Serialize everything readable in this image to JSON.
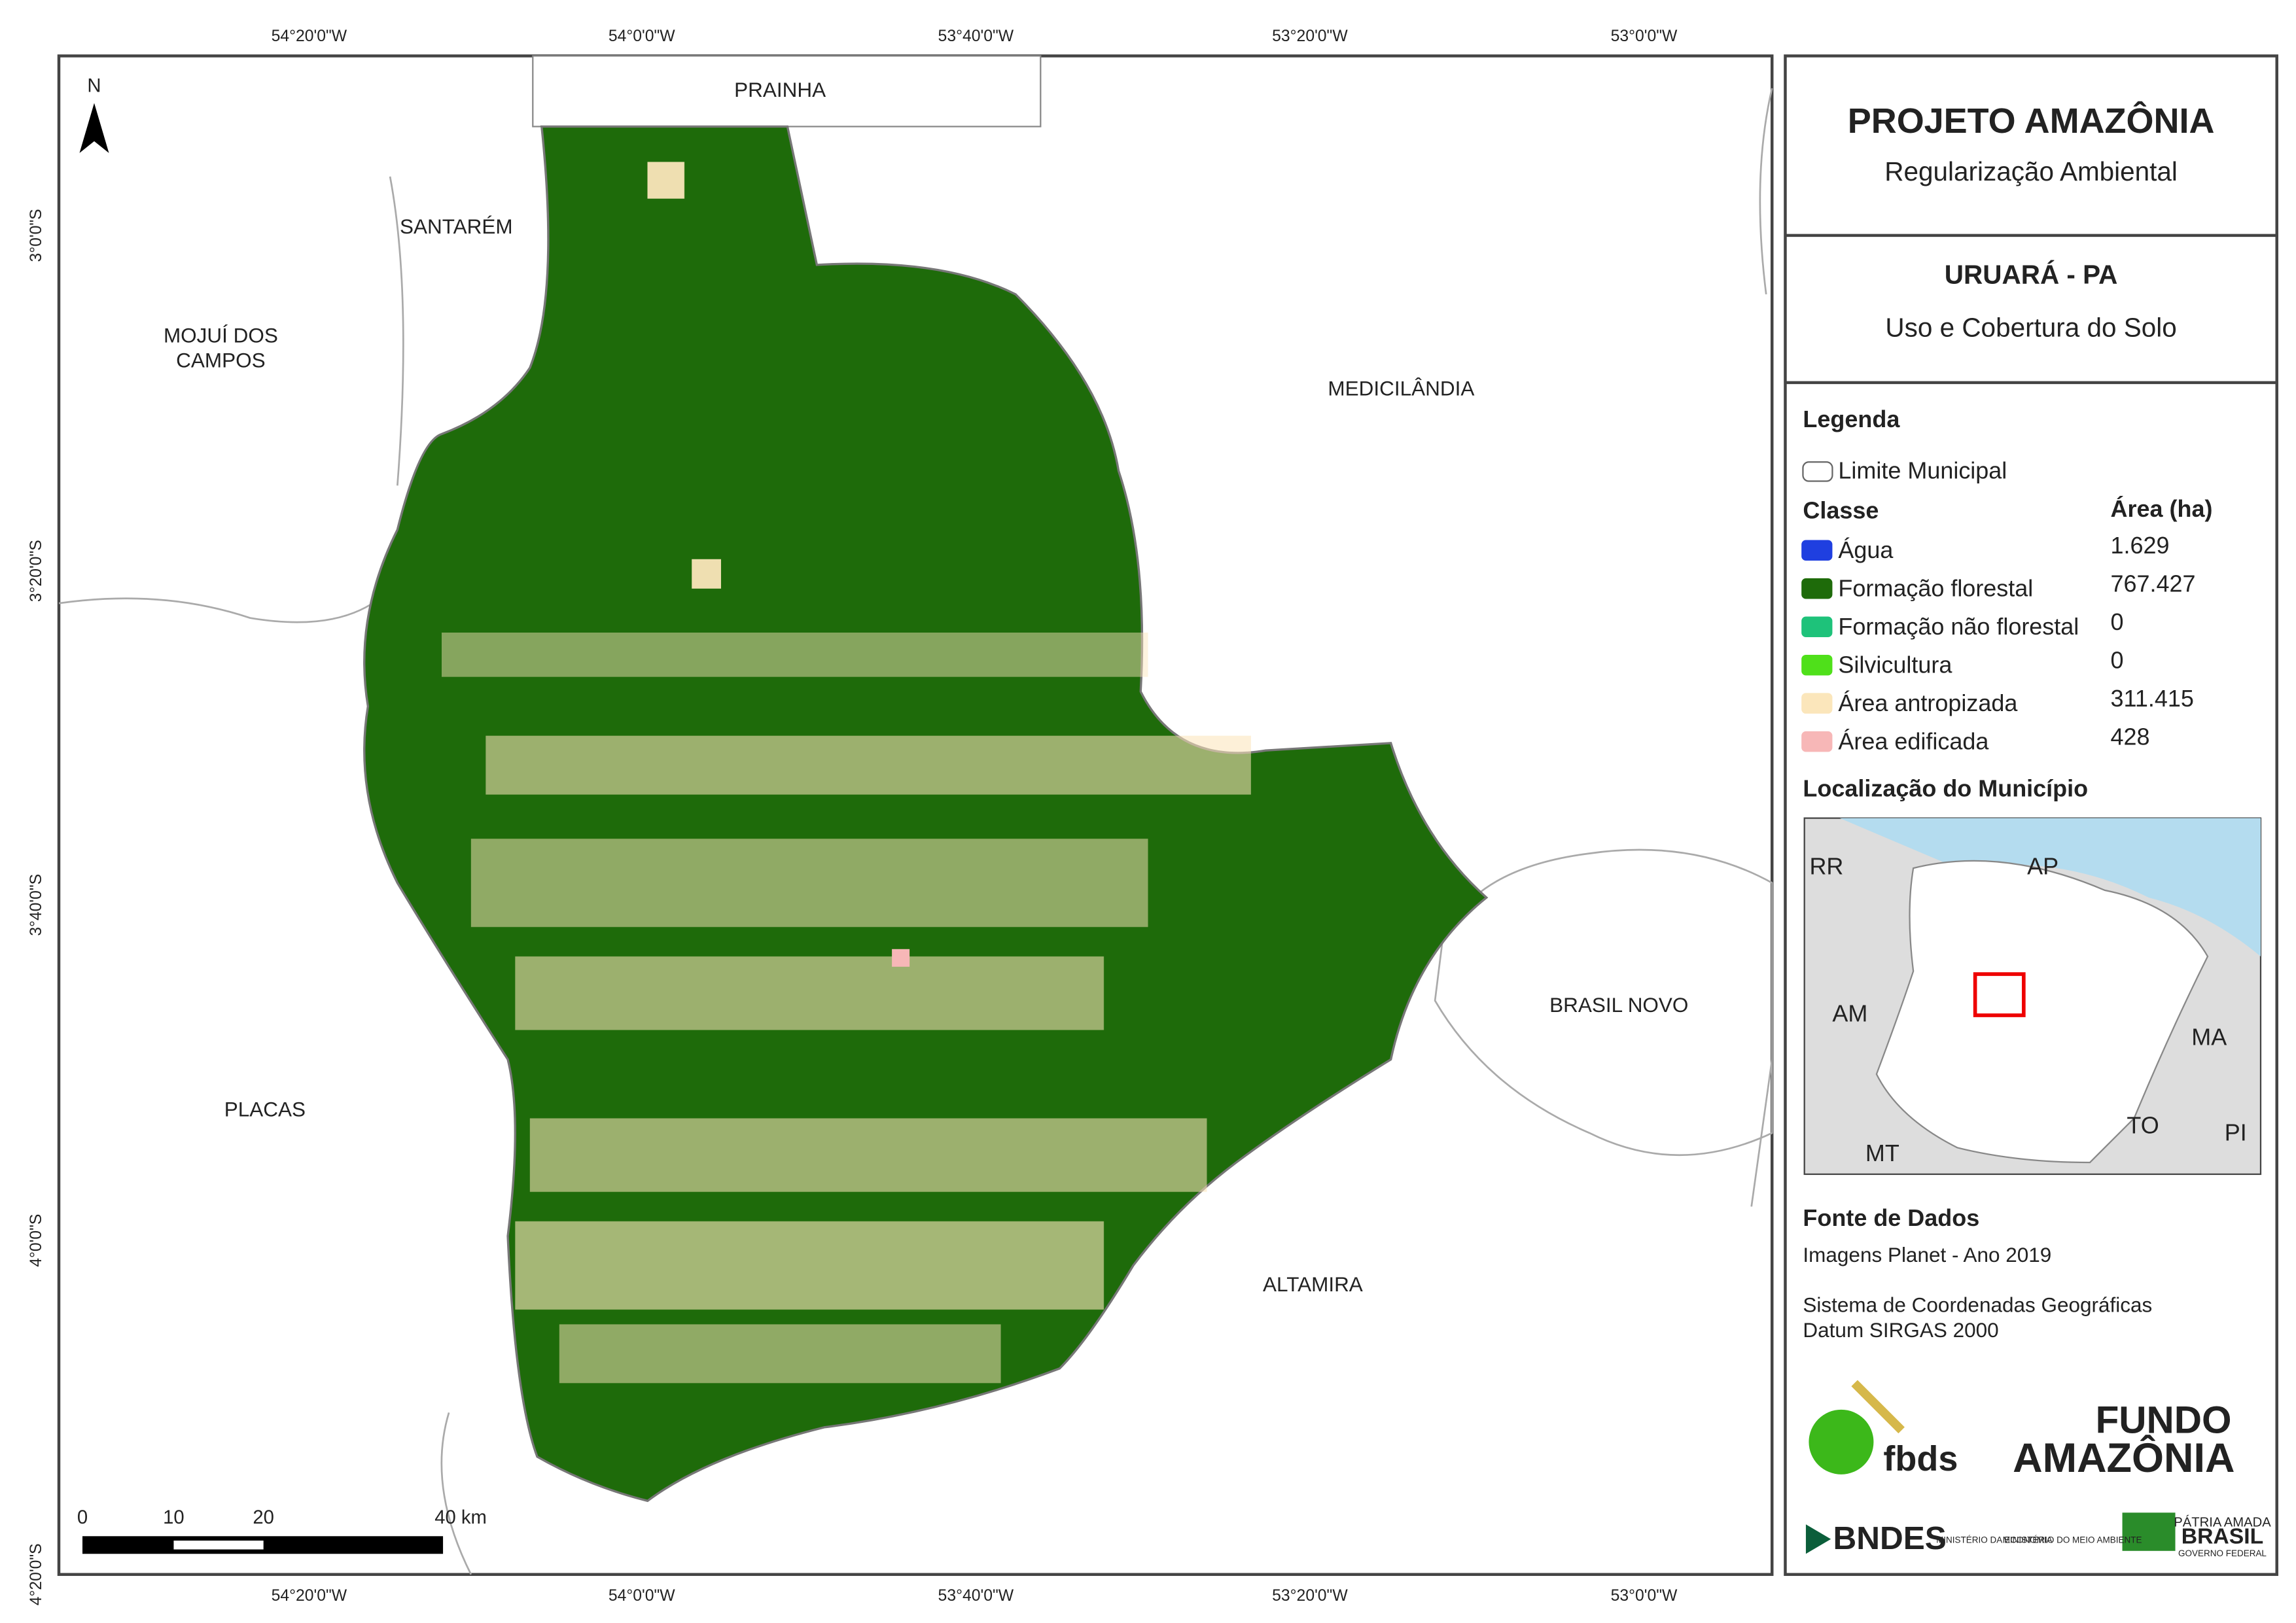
{
  "header": {
    "title": "PROJETO AMAZÔNIA",
    "subtitle": "Regularização Ambiental"
  },
  "municipality": {
    "name": "URUARÁ - PA",
    "theme": "Uso e Cobertura do Solo"
  },
  "legend": {
    "title": "Legenda",
    "boundary": "Limite Municipal",
    "class_header": "Classe",
    "area_header": "Área (ha)",
    "classes": [
      {
        "name": "Água",
        "area": "1.629",
        "color": "#1f3fe0"
      },
      {
        "name": "Formação florestal",
        "area": "767.427",
        "color": "#1e6b0a"
      },
      {
        "name": "Formação não florestal",
        "area": "0",
        "color": "#1ec27a"
      },
      {
        "name": "Silvicultura",
        "area": "0",
        "color": "#4fe01a"
      },
      {
        "name": "Área antropizada",
        "area": "311.415",
        "color": "#fbe6bb"
      },
      {
        "name": "Área edificada",
        "area": "428",
        "color": "#f7b7b7"
      }
    ]
  },
  "location": {
    "title": "Localização do Município",
    "states": [
      "RR",
      "AP",
      "AM",
      "MA",
      "TO",
      "MT",
      "PI"
    ]
  },
  "sources": {
    "title": "Fonte de Dados",
    "lines": [
      "Imagens Planet - Ano 2019",
      "Sistema de Coordenadas Geográficas",
      "Datum SIRGAS 2000"
    ]
  },
  "map": {
    "north": "N",
    "neighbors": [
      [
        "PRAINHA"
      ],
      [
        "SANTARÉM"
      ],
      [
        "MOJUÍ DOS",
        "CAMPOS"
      ],
      [
        "MEDICILÂNDIA"
      ],
      [
        "BRASIL NOVO"
      ],
      [
        "PLACAS"
      ],
      [
        "ALTAMIRA"
      ]
    ],
    "lon_labels": [
      "54°20'0\"W",
      "54°0'0\"W",
      "53°40'0\"W",
      "53°20'0\"W",
      "53°0'0\"W"
    ],
    "lat_labels": [
      "3°0'0\"S",
      "3°20'0\"S",
      "3°40'0\"S",
      "4°0'0\"S",
      "4°20'0\"S"
    ],
    "scale": [
      "0",
      "10",
      "20",
      "40 km"
    ]
  },
  "logos": {
    "fbds": "fbds",
    "fundo": [
      "FUNDO",
      "AMAZÔNIA"
    ],
    "bndes": "BNDES",
    "ministries": [
      "MINISTÉRIO DA ECONOMIA",
      "MINISTÉRIO DO MEIO AMBIENTE"
    ],
    "brasil": [
      "PÁTRIA AMADA",
      "BRASIL",
      "GOVERNO FEDERAL"
    ]
  }
}
